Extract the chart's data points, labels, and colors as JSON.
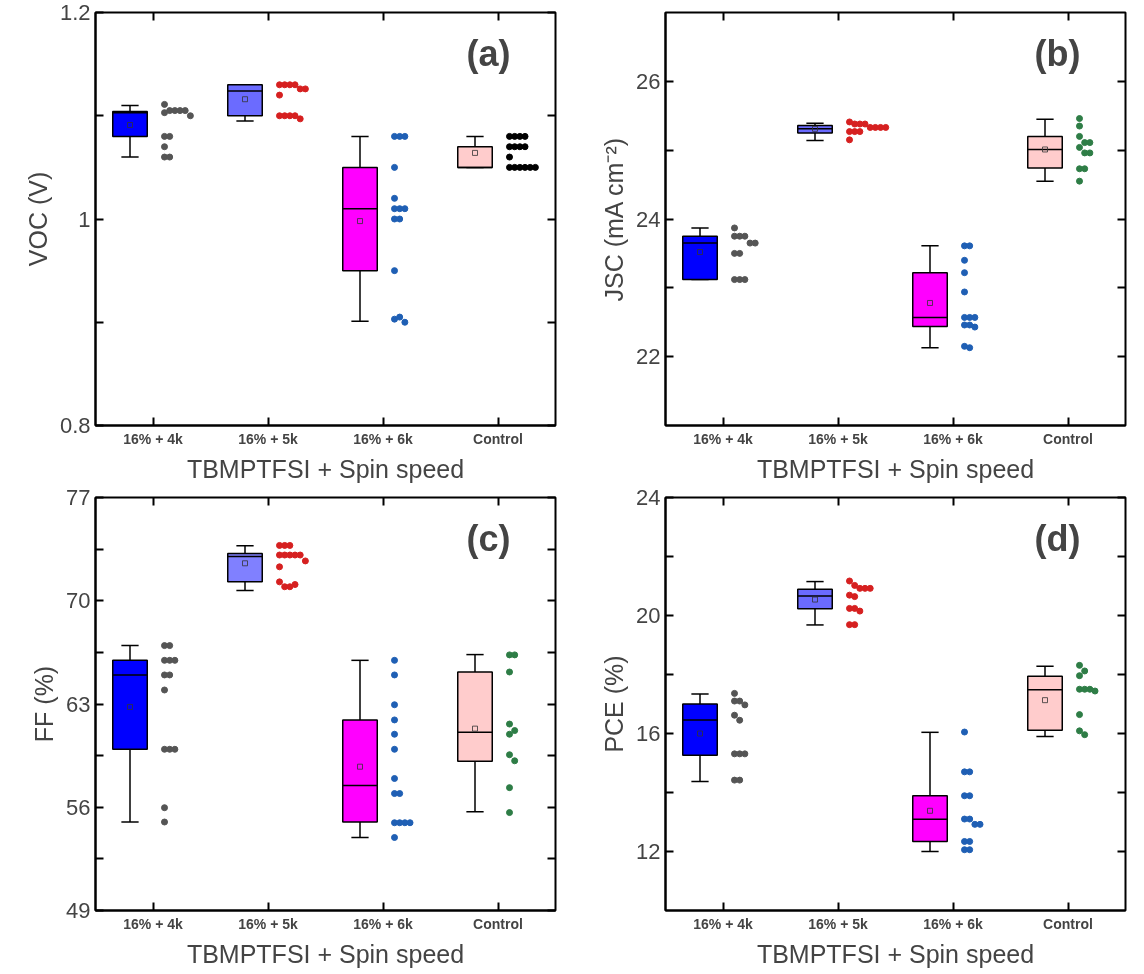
{
  "chart_data": [
    {
      "type": "box",
      "ylabel": "VOC (V)",
      "xlabel": "TBMPTFSI + Spin speed",
      "annotations": [
        "(a)"
      ],
      "grid": false,
      "marker": "circle",
      "categories": [
        "16% + 4k",
        "16% + 5k",
        "16% + 6k",
        "Control"
      ],
      "colors": [
        "#0000ff",
        "#6b6bff",
        "#ff00ff",
        "#ffcccc"
      ],
      "ylim": [
        0.8,
        1.2
      ],
      "yticks": [
        0.8,
        {
          "value": 0.9,
          "label": null
        },
        1.0,
        {
          "value": 1.1,
          "label": null
        },
        1.2
      ],
      "boxes": [
        {
          "low": 1.06,
          "q1": 1.08,
          "median": 1.103,
          "q3": 1.104,
          "high": 1.11,
          "mean": 1.091
        },
        {
          "low": 1.095,
          "q1": 1.1,
          "median": 1.124,
          "q3": 1.13,
          "high": 1.13,
          "mean": 1.116
        },
        {
          "low": 0.901,
          "q1": 0.95,
          "median": 1.01,
          "q3": 1.05,
          "high": 1.08,
          "mean": 0.998
        },
        {
          "low": 1.05,
          "q1": 1.05,
          "median": 1.05,
          "q3": 1.07,
          "high": 1.08,
          "mean": 1.064
        }
      ],
      "series": [
        {
          "type": "scatter",
          "color": "#555555",
          "x": [
            "16% + 4k",
            "16% + 4k",
            "16% + 4k",
            "16% + 4k",
            "16% + 4k",
            "16% + 4k",
            "16% + 4k",
            "16% + 4k",
            "16% + 4k",
            "16% + 4k",
            "16% + 4k",
            "16% + 4k"
          ],
          "values": [
            1.111,
            1.105,
            1.105,
            1.105,
            1.105,
            1.103,
            1.1,
            1.08,
            1.08,
            1.07,
            1.06,
            1.06
          ]
        },
        {
          "type": "scatter",
          "color": "#d62020",
          "x": [
            "16% + 5k",
            "16% + 5k",
            "16% + 5k",
            "16% + 5k",
            "16% + 5k",
            "16% + 5k",
            "16% + 5k",
            "16% + 5k",
            "16% + 5k",
            "16% + 5k",
            "16% + 5k",
            "16% + 5k"
          ],
          "values": [
            1.13,
            1.13,
            1.13,
            1.13,
            1.126,
            1.126,
            1.12,
            1.1,
            1.1,
            1.1,
            1.1,
            1.097
          ]
        },
        {
          "type": "scatter",
          "color": "#1f5fb4",
          "x": [
            "16% + 6k",
            "16% + 6k",
            "16% + 6k",
            "16% + 6k",
            "16% + 6k",
            "16% + 6k",
            "16% + 6k",
            "16% + 6k",
            "16% + 6k",
            "16% + 6k",
            "16% + 6k",
            "16% + 6k",
            "16% + 6k",
            "16% + 6k"
          ],
          "values": [
            1.08,
            1.08,
            1.08,
            1.05,
            1.02,
            1.01,
            1.01,
            1.01,
            1.0,
            1.0,
            0.95,
            0.903,
            0.905,
            0.9
          ]
        },
        {
          "type": "scatter",
          "color": "#000000",
          "x": [
            "Control",
            "Control",
            "Control",
            "Control",
            "Control",
            "Control",
            "Control",
            "Control",
            "Control",
            "Control",
            "Control",
            "Control",
            "Control",
            "Control",
            "Control"
          ],
          "values": [
            1.08,
            1.08,
            1.08,
            1.08,
            1.07,
            1.07,
            1.07,
            1.07,
            1.06,
            1.05,
            1.05,
            1.05,
            1.05,
            1.05,
            1.05
          ]
        }
      ]
    },
    {
      "type": "box",
      "ylabel": "JSC (mA cm⁻²)",
      "xlabel": "TBMPTFSI + Spin speed",
      "annotations": [
        "(b)"
      ],
      "grid": false,
      "marker": "circle",
      "categories": [
        "16% + 4k",
        "16% + 5k",
        "16% + 6k",
        "Control"
      ],
      "colors": [
        "#0000ff",
        "#6b6bff",
        "#ff00ff",
        "#ffcccc"
      ],
      "ylim": [
        21,
        27
      ],
      "yticks": [
        22,
        {
          "value": 23,
          "label": null
        },
        24,
        {
          "value": 25,
          "label": null
        },
        26
      ],
      "boxes": [
        {
          "low": 23.12,
          "q1": 23.12,
          "median": 23.65,
          "q3": 23.75,
          "high": 23.87,
          "mean": 23.52
        },
        {
          "low": 25.14,
          "q1": 25.25,
          "median": 25.31,
          "q3": 25.36,
          "high": 25.39,
          "mean": 25.31
        },
        {
          "low": 22.13,
          "q1": 22.44,
          "median": 22.57,
          "q3": 23.22,
          "high": 23.61,
          "mean": 22.78
        },
        {
          "low": 24.55,
          "q1": 24.74,
          "median": 25.01,
          "q3": 25.2,
          "high": 25.45,
          "mean": 25.01
        }
      ],
      "series": [
        {
          "type": "scatter",
          "color": "#555555",
          "x": [
            "16% + 4k",
            "16% + 4k",
            "16% + 4k",
            "16% + 4k",
            "16% + 4k",
            "16% + 4k",
            "16% + 4k",
            "16% + 4k",
            "16% + 4k",
            "16% + 4k",
            "16% + 4k"
          ],
          "values": [
            23.87,
            23.75,
            23.75,
            23.75,
            23.65,
            23.65,
            23.5,
            23.5,
            23.12,
            23.12,
            23.12
          ]
        },
        {
          "type": "scatter",
          "color": "#d62020",
          "x": [
            "16% + 5k",
            "16% + 5k",
            "16% + 5k",
            "16% + 5k",
            "16% + 5k",
            "16% + 5k",
            "16% + 5k",
            "16% + 5k",
            "16% + 5k",
            "16% + 5k",
            "16% + 5k",
            "16% + 5k"
          ],
          "values": [
            25.41,
            25.38,
            25.38,
            25.38,
            25.33,
            25.33,
            25.33,
            25.33,
            25.27,
            25.27,
            25.27,
            25.15
          ]
        },
        {
          "type": "scatter",
          "color": "#1f5fb4",
          "x": [
            "16% + 6k",
            "16% + 6k",
            "16% + 6k",
            "16% + 6k",
            "16% + 6k",
            "16% + 6k",
            "16% + 6k",
            "16% + 6k",
            "16% + 6k",
            "16% + 6k",
            "16% + 6k",
            "16% + 6k",
            "16% + 6k"
          ],
          "values": [
            23.61,
            23.61,
            23.4,
            23.22,
            22.94,
            22.57,
            22.57,
            22.57,
            22.46,
            22.46,
            22.43,
            22.15,
            22.13
          ]
        },
        {
          "type": "scatter",
          "color": "#2e7d46",
          "x": [
            "Control",
            "Control",
            "Control",
            "Control",
            "Control",
            "Control",
            "Control",
            "Control",
            "Control",
            "Control",
            "Control"
          ],
          "values": [
            25.46,
            25.35,
            25.2,
            25.11,
            25.11,
            25.04,
            24.96,
            24.96,
            24.73,
            24.73,
            24.55
          ]
        }
      ]
    },
    {
      "type": "box",
      "ylabel": "FF (%)",
      "xlabel": "TBMPTFSI + Spin speed",
      "annotations": [
        "(c)"
      ],
      "grid": false,
      "marker": "circle",
      "categories": [
        "16% + 4k",
        "16% + 5k",
        "16% + 6k",
        "Control"
      ],
      "colors": [
        "#0000ff",
        "#8080ff",
        "#ff00ff",
        "#ffcccc"
      ],
      "ylim": [
        49,
        77
      ],
      "yticks": [
        49,
        {
          "value": 52.5,
          "label": null
        },
        56,
        {
          "value": 59.5,
          "label": null
        },
        63,
        {
          "value": 66.5,
          "label": null
        },
        70,
        {
          "value": 73.5,
          "label": null
        },
        77
      ],
      "boxes": [
        {
          "low": 55.0,
          "q1": 59.93,
          "median": 64.97,
          "q3": 65.96,
          "high": 66.96,
          "mean": 62.8
        },
        {
          "low": 70.7,
          "q1": 71.28,
          "median": 73.0,
          "q3": 73.2,
          "high": 73.73,
          "mean": 72.54
        },
        {
          "low": 53.95,
          "q1": 55.0,
          "median": 57.48,
          "q3": 61.92,
          "high": 65.96,
          "mean": 58.75
        },
        {
          "low": 55.69,
          "q1": 59.12,
          "median": 61.08,
          "q3": 65.17,
          "high": 66.35,
          "mean": 61.33
        }
      ],
      "series": [
        {
          "type": "scatter",
          "color": "#555555",
          "x": [
            "16% + 4k",
            "16% + 4k",
            "16% + 4k",
            "16% + 4k",
            "16% + 4k",
            "16% + 4k",
            "16% + 4k",
            "16% + 4k",
            "16% + 4k",
            "16% + 4k",
            "16% + 4k",
            "16% + 4k",
            "16% + 4k"
          ],
          "values": [
            66.96,
            66.96,
            65.96,
            65.96,
            65.96,
            64.97,
            64.97,
            63.95,
            59.93,
            59.93,
            59.93,
            55.97,
            55.0
          ]
        },
        {
          "type": "scatter",
          "color": "#d62020",
          "x": [
            "16% + 5k",
            "16% + 5k",
            "16% + 5k",
            "16% + 5k",
            "16% + 5k",
            "16% + 5k",
            "16% + 5k",
            "16% + 5k",
            "16% + 5k",
            "16% + 5k",
            "16% + 5k",
            "16% + 5k",
            "16% + 5k",
            "16% + 5k"
          ],
          "values": [
            73.75,
            73.75,
            73.75,
            73.1,
            73.1,
            73.1,
            73.1,
            73.1,
            72.7,
            72.3,
            71.28,
            70.95,
            70.95,
            71.1
          ]
        },
        {
          "type": "scatter",
          "color": "#1f5fb4",
          "x": [
            "16% + 6k",
            "16% + 6k",
            "16% + 6k",
            "16% + 6k",
            "16% + 6k",
            "16% + 6k",
            "16% + 6k",
            "16% + 6k",
            "16% + 6k",
            "16% + 6k",
            "16% + 6k",
            "16% + 6k",
            "16% + 6k",
            "16% + 6k"
          ],
          "values": [
            65.96,
            64.97,
            62.95,
            61.92,
            60.95,
            59.93,
            57.95,
            56.93,
            56.93,
            54.95,
            54.95,
            54.95,
            54.95,
            53.95
          ]
        },
        {
          "type": "scatter",
          "color": "#2e7d46",
          "x": [
            "Control",
            "Control",
            "Control",
            "Control",
            "Control",
            "Control",
            "Control",
            "Control",
            "Control",
            "Control"
          ],
          "values": [
            66.33,
            66.33,
            65.17,
            61.64,
            61.2,
            60.95,
            59.56,
            59.15,
            57.33,
            55.64
          ]
        }
      ]
    },
    {
      "type": "box",
      "ylabel": "PCE (%)",
      "xlabel": "TBMPTFSI + Spin speed",
      "annotations": [
        "(d)"
      ],
      "grid": false,
      "marker": "circle",
      "categories": [
        "16% + 4k",
        "16% + 5k",
        "16% + 6k",
        "Control"
      ],
      "colors": [
        "#0000ff",
        "#6b6bff",
        "#ff00ff",
        "#ffcccc"
      ],
      "ylim": [
        10,
        24
      ],
      "yticks": [
        12,
        {
          "value": 14,
          "label": null
        },
        16,
        {
          "value": 18,
          "label": null
        },
        20,
        {
          "value": 22,
          "label": null
        },
        24
      ],
      "boxes": [
        {
          "low": 14.37,
          "q1": 15.26,
          "median": 16.46,
          "q3": 17.0,
          "high": 17.34,
          "mean": 16.0
        },
        {
          "low": 19.68,
          "q1": 20.23,
          "median": 20.66,
          "q3": 20.89,
          "high": 21.15,
          "mean": 20.54
        },
        {
          "low": 12.0,
          "q1": 12.34,
          "median": 13.09,
          "q3": 13.89,
          "high": 16.04,
          "mean": 13.38
        },
        {
          "low": 15.9,
          "q1": 16.11,
          "median": 17.48,
          "q3": 17.94,
          "high": 18.28,
          "mean": 17.13
        }
      ],
      "series": [
        {
          "type": "scatter",
          "color": "#555555",
          "x": [
            "16% + 4k",
            "16% + 4k",
            "16% + 4k",
            "16% + 4k",
            "16% + 4k",
            "16% + 4k",
            "16% + 4k",
            "16% + 4k",
            "16% + 4k",
            "16% + 4k",
            "16% + 4k"
          ],
          "values": [
            17.36,
            17.1,
            17.1,
            16.97,
            16.62,
            16.45,
            15.31,
            15.31,
            15.31,
            14.42,
            14.42
          ]
        },
        {
          "type": "scatter",
          "color": "#d62020",
          "x": [
            "16% + 5k",
            "16% + 5k",
            "16% + 5k",
            "16% + 5k",
            "16% + 5k",
            "16% + 5k",
            "16% + 5k",
            "16% + 5k",
            "16% + 5k",
            "16% + 5k",
            "16% + 5k",
            "16% + 5k"
          ],
          "values": [
            21.17,
            21.02,
            20.92,
            20.92,
            20.92,
            20.69,
            20.64,
            20.24,
            20.24,
            20.15,
            19.69,
            19.69
          ]
        },
        {
          "type": "scatter",
          "color": "#1f5fb4",
          "x": [
            "16% + 6k",
            "16% + 6k",
            "16% + 6k",
            "16% + 6k",
            "16% + 6k",
            "16% + 6k",
            "16% + 6k",
            "16% + 6k",
            "16% + 6k",
            "16% + 6k",
            "16% + 6k",
            "16% + 6k",
            "16% + 6k"
          ],
          "values": [
            16.05,
            14.7,
            14.7,
            13.89,
            13.89,
            13.1,
            13.1,
            12.92,
            12.92,
            12.34,
            12.34,
            12.06,
            12.06
          ]
        },
        {
          "type": "scatter",
          "color": "#2e7d46",
          "x": [
            "Control",
            "Control",
            "Control",
            "Control",
            "Control",
            "Control",
            "Control",
            "Control",
            "Control",
            "Control"
          ],
          "values": [
            18.31,
            18.12,
            17.96,
            17.5,
            17.5,
            17.5,
            17.44,
            16.64,
            16.09,
            15.96
          ]
        }
      ]
    }
  ]
}
